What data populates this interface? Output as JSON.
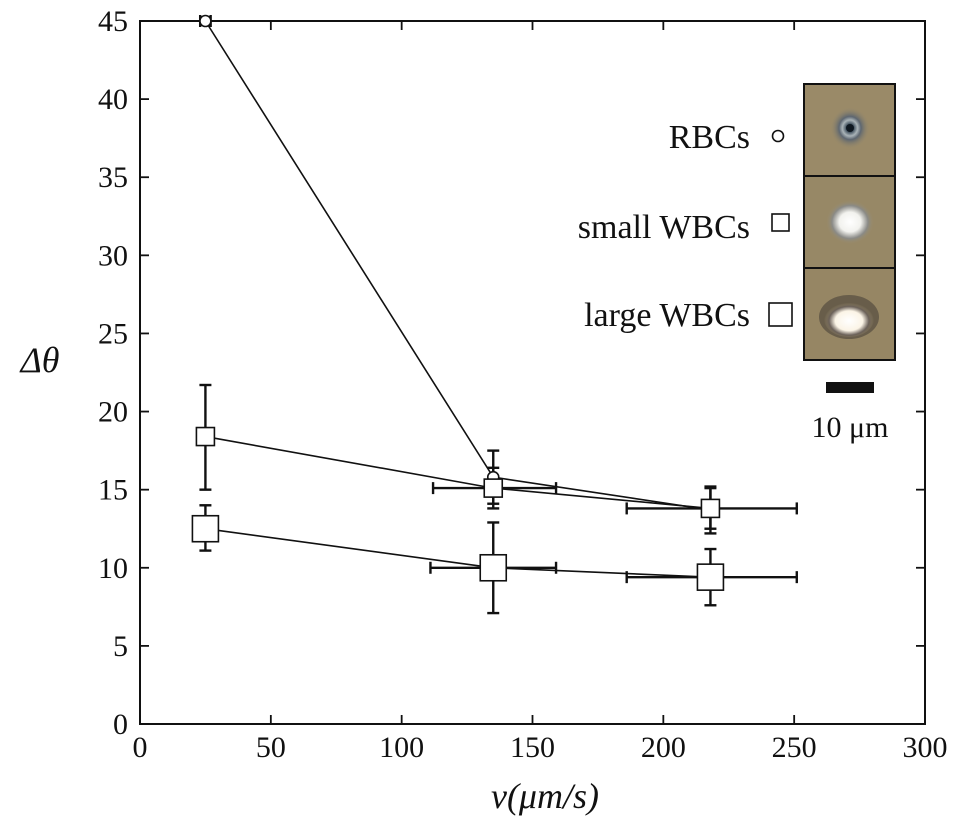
{
  "chart_data": {
    "type": "scatter",
    "title": "",
    "xlabel": "v(μm/s)",
    "ylabel": "Δθ",
    "xlim": [
      0,
      300
    ],
    "ylim": [
      0,
      45
    ],
    "xticks": [
      0,
      50,
      100,
      150,
      200,
      250,
      300
    ],
    "yticks": [
      0,
      5,
      10,
      15,
      20,
      25,
      30,
      35,
      40,
      45
    ],
    "grid": false,
    "legend_position": "top-right",
    "series": [
      {
        "name": "RBCs",
        "marker": "circle-small",
        "x": [
          25,
          135,
          218
        ],
        "y": [
          45,
          15.8,
          13.7
        ],
        "xerr": [
          [
            2,
            2
          ],
          [
            0,
            0
          ],
          [
            0,
            0
          ]
        ],
        "yerr": [
          [
            0,
            0
          ],
          [
            1.7,
            1.7
          ],
          [
            1.5,
            1.5
          ]
        ]
      },
      {
        "name": "small WBCs",
        "marker": "square-medium",
        "x": [
          25,
          135,
          218
        ],
        "y": [
          18.4,
          15.1,
          13.8
        ],
        "xerr": [
          [
            0,
            0
          ],
          [
            23,
            24
          ],
          [
            32,
            33
          ]
        ],
        "yerr": [
          [
            3.4,
            3.3
          ],
          [
            1.3,
            1.3
          ],
          [
            1.3,
            1.3
          ]
        ]
      },
      {
        "name": "large WBCs",
        "marker": "square-large",
        "x": [
          25,
          135,
          218
        ],
        "y": [
          12.5,
          10,
          9.4
        ],
        "xerr": [
          [
            0,
            0
          ],
          [
            24,
            24
          ],
          [
            32,
            33
          ]
        ],
        "yerr": [
          [
            1.4,
            1.5
          ],
          [
            2.9,
            2.9
          ],
          [
            1.8,
            1.8
          ]
        ]
      }
    ],
    "annotations": {
      "scale_bar_label": "10 μm"
    },
    "colors": {
      "line": "#111111",
      "marker_fill": "#ffffff",
      "cell_bg": "#9a8a6a"
    }
  }
}
